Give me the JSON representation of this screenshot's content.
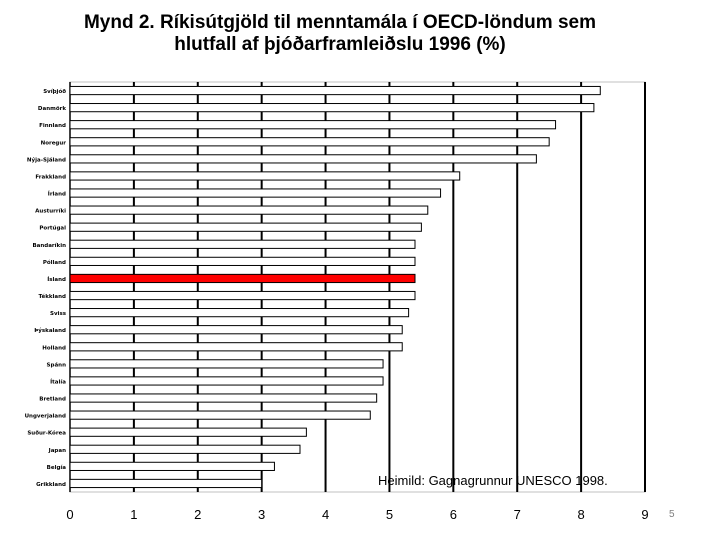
{
  "slide": {
    "page_number": "5"
  },
  "chart_data": {
    "type": "bar",
    "orientation": "horizontal",
    "title_line1": "Mynd 2. Ríkisútgjöld til menntamála í OECD-löndum sem",
    "title_line2": "hlutfall af þjóðarframleiðslu 1996 (%)",
    "source": "Heimild: Gagnagrunnur UNESCO 1998.",
    "categories": [
      "Svíþjóð",
      "Danmörk",
      "Finnland",
      "Noregur",
      "Nýja-Sjáland",
      "Frakkland",
      "Írland",
      "Austurríki",
      "Portúgal",
      "Bandaríkin",
      "Pólland",
      "Ísland",
      "Tékkland",
      "Sviss",
      "Þýskaland",
      "Holland",
      "Spánn",
      "Ítalía",
      "Bretland",
      "Ungverjaland",
      "Suður-Kórea",
      "Japan",
      "Belgía",
      "Grikkland"
    ],
    "values": [
      8.3,
      8.2,
      7.6,
      7.5,
      7.3,
      6.1,
      5.8,
      5.6,
      5.5,
      5.4,
      5.4,
      5.4,
      5.4,
      5.3,
      5.2,
      5.2,
      4.9,
      4.9,
      4.8,
      4.7,
      3.7,
      3.6,
      3.2,
      3.0
    ],
    "highlight_category": "Ísland",
    "xlim": [
      0,
      9
    ],
    "xticks": [
      "0",
      "1",
      "2",
      "3",
      "4",
      "5",
      "6",
      "7",
      "8",
      "9"
    ],
    "grid": "vertical",
    "colors": {
      "bar": "#ffffff",
      "highlight": "#ff0000",
      "bar_edge": "#000000",
      "grid": "#000000"
    }
  }
}
